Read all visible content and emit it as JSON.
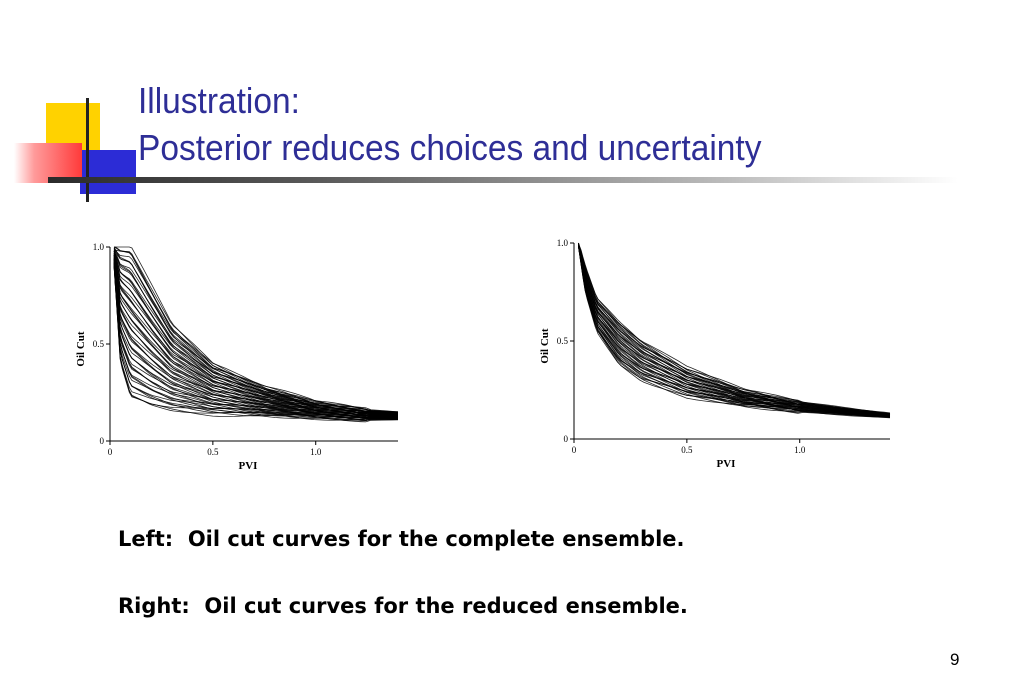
{
  "slide": {
    "title_line1": "Illustration:",
    "title_line2": "Posterior reduces choices and uncertainty",
    "caption_left": "Left:  Oil cut curves for the complete ensemble.",
    "caption_right": "Right:  Oil cut curves for the reduced ensemble.",
    "page_number": "9",
    "colors": {
      "title": "#2e2e96",
      "accent_yellow": "#ffd200",
      "accent_blue": "#2c2cd6",
      "accent_red": "#ff3a3a"
    }
  },
  "chart_data": [
    {
      "type": "line",
      "description_ensemble": "complete",
      "xlabel": "PVI",
      "ylabel": "Oil Cut",
      "xlim": [
        0,
        1.4
      ],
      "ylim": [
        0,
        1.0
      ],
      "xticks": [
        "0",
        "0.5",
        "1.0"
      ],
      "yticks": [
        "0",
        "0.5",
        "1.0"
      ],
      "series_envelope": {
        "x": [
          0.02,
          0.05,
          0.1,
          0.2,
          0.3,
          0.5,
          0.75,
          1.0,
          1.25,
          1.4
        ],
        "lower": [
          0.9,
          0.4,
          0.22,
          0.18,
          0.16,
          0.14,
          0.13,
          0.12,
          0.11,
          0.11
        ],
        "upper": [
          1.0,
          1.0,
          1.0,
          0.8,
          0.6,
          0.4,
          0.28,
          0.2,
          0.16,
          0.15
        ]
      },
      "curve_count": 60
    },
    {
      "type": "line",
      "description_ensemble": "reduced",
      "xlabel": "PVI",
      "ylabel": "Oil Cut",
      "xlim": [
        0,
        1.4
      ],
      "ylim": [
        0,
        1.0
      ],
      "xticks": [
        "0",
        "0.5",
        "1.0"
      ],
      "yticks": [
        "0",
        "0.5",
        "1.0"
      ],
      "series_envelope": {
        "x": [
          0.02,
          0.05,
          0.1,
          0.2,
          0.3,
          0.5,
          0.75,
          1.0,
          1.25,
          1.4
        ],
        "lower": [
          0.98,
          0.75,
          0.55,
          0.38,
          0.3,
          0.22,
          0.17,
          0.14,
          0.12,
          0.11
        ],
        "upper": [
          1.0,
          0.88,
          0.72,
          0.6,
          0.5,
          0.36,
          0.25,
          0.19,
          0.15,
          0.13
        ]
      },
      "curve_count": 40
    }
  ]
}
